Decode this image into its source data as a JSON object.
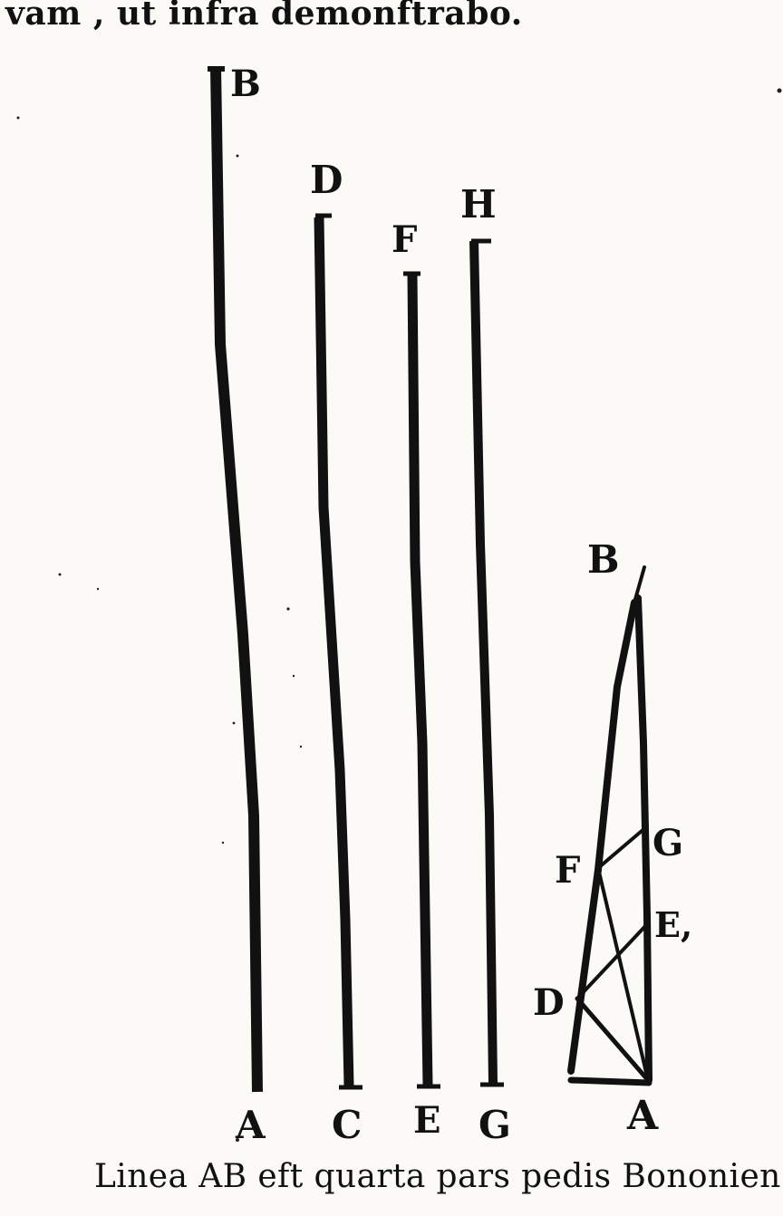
{
  "text": {
    "top_line": "vam , ut infra demonftrabo.",
    "caption": "Linea AB eft quarta pars pedis Bononien"
  },
  "labels": {
    "parallel": {
      "b_top": "B",
      "d_top": "D",
      "f_top": "F",
      "h_top": "H",
      "a_bottom": "A",
      "c_bottom": "C",
      "e_bottom": "E",
      "g_bottom": "G"
    },
    "triangle": {
      "b": "B",
      "g": "G",
      "f": "F",
      "e": "E,",
      "d": "D",
      "a": "A"
    }
  }
}
